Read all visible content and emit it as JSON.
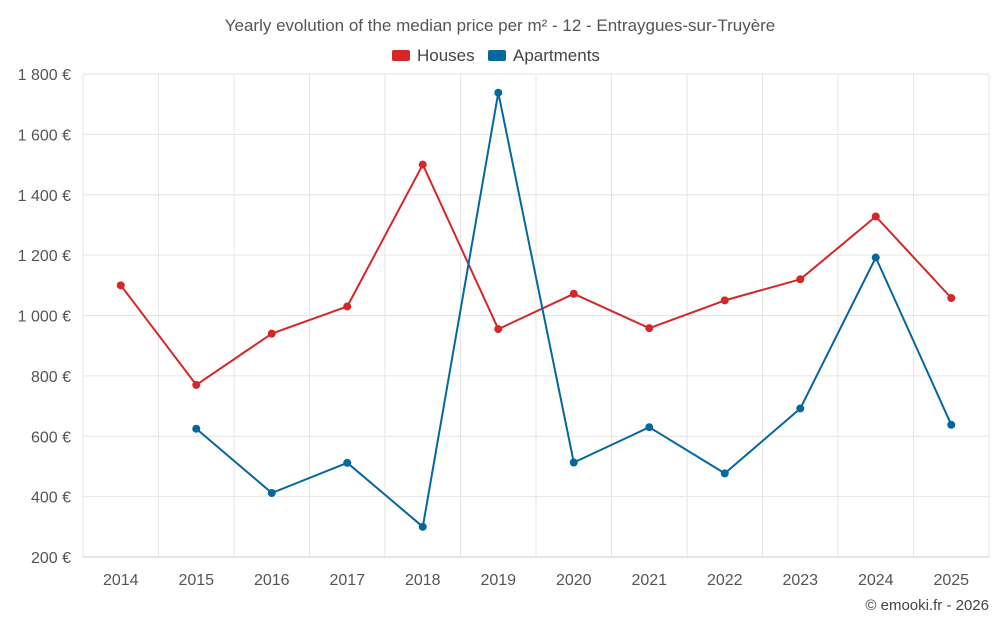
{
  "chart_data": {
    "type": "line",
    "title": "Yearly evolution of the median price per m² - 12 - Entraygues-sur-Truyère",
    "categories": [
      "2014",
      "2015",
      "2016",
      "2017",
      "2018",
      "2019",
      "2020",
      "2021",
      "2022",
      "2023",
      "2024",
      "2025"
    ],
    "series": [
      {
        "name": "Houses",
        "color": "#d62728",
        "values": [
          1100,
          770,
          940,
          1030,
          1500,
          955,
          1072,
          958,
          1050,
          1120,
          1328,
          1058
        ]
      },
      {
        "name": "Apartments",
        "color": "#04679d",
        "values": [
          null,
          625,
          412,
          512,
          300,
          1738,
          513,
          630,
          477,
          692,
          1192,
          638
        ]
      }
    ],
    "ylim": [
      200,
      1800
    ],
    "yticks": [
      200,
      400,
      600,
      800,
      1000,
      1200,
      1400,
      1600,
      1800
    ],
    "ytick_labels": [
      "200 €",
      "400 €",
      "600 €",
      "800 €",
      "1 000 €",
      "1 200 €",
      "1 400 €",
      "1 600 €",
      "1 800 €"
    ],
    "xlabel": "",
    "ylabel": "",
    "legend_position": "top-center",
    "grid": true
  },
  "credit": "© emooki.fr - 2026"
}
